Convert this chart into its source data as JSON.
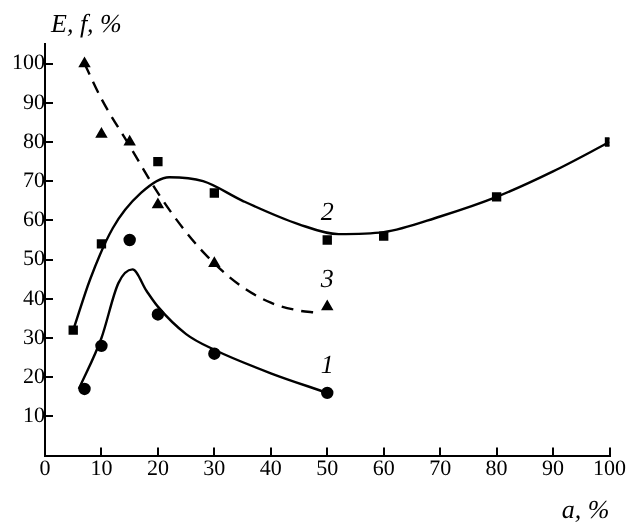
{
  "chart_data": {
    "type": "scatter",
    "xlabel": "a, %",
    "ylabel": "E, f, %",
    "xlim": [
      0,
      100
    ],
    "ylim": [
      0,
      105
    ],
    "xticks": [
      0,
      10,
      20,
      30,
      40,
      50,
      60,
      70,
      80,
      90,
      100
    ],
    "yticks": [
      10,
      20,
      30,
      40,
      50,
      60,
      70,
      80,
      90,
      100
    ],
    "grid": false,
    "legend": false,
    "series": [
      {
        "name": "1",
        "type": "scatter",
        "marker": "circle",
        "color": "#000000",
        "x": [
          7,
          10,
          15,
          20,
          30,
          50
        ],
        "values": [
          17,
          28,
          55,
          36,
          26,
          16
        ]
      },
      {
        "name": "2",
        "type": "scatter",
        "marker": "square",
        "color": "#000000",
        "x": [
          5,
          10,
          20,
          30,
          50,
          60,
          80,
          100
        ],
        "values": [
          32,
          54,
          75,
          67,
          55,
          56,
          66,
          80
        ]
      },
      {
        "name": "3",
        "type": "scatter",
        "marker": "triangle",
        "color": "#000000",
        "x": [
          7,
          10,
          15,
          20,
          30,
          50
        ],
        "values": [
          100,
          82,
          80,
          64,
          49,
          38
        ]
      },
      {
        "type": "line",
        "marker": "none",
        "line_style": "solid",
        "color": "#000000",
        "x": [
          6,
          10,
          13,
          15.5,
          18,
          20,
          25,
          30,
          40,
          50
        ],
        "values": [
          17,
          30,
          44,
          47.5,
          42,
          38,
          31,
          27,
          21,
          16
        ]
      },
      {
        "type": "line",
        "marker": "none",
        "line_style": "solid",
        "color": "#000000",
        "x": [
          5,
          8,
          12,
          17,
          22,
          28,
          35,
          45,
          52,
          60,
          70,
          80,
          90,
          100
        ],
        "values": [
          32,
          45,
          58,
          67,
          71,
          70,
          65,
          59,
          56.5,
          57,
          61,
          66,
          72.5,
          80
        ]
      },
      {
        "type": "line",
        "marker": "none",
        "line_style": "dashed",
        "color": "#000000",
        "x": [
          7,
          10,
          15,
          20,
          25,
          30,
          35,
          40,
          45,
          48
        ],
        "values": [
          100,
          91,
          79,
          67,
          57,
          49,
          43,
          39,
          37,
          36.5
        ]
      }
    ]
  }
}
